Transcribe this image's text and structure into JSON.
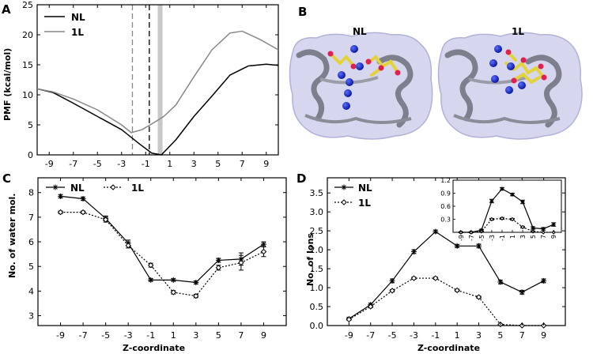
{
  "panels": {
    "A": {
      "letter": "A"
    },
    "B": {
      "letter": "B",
      "labels": [
        "NL",
        "1L"
      ]
    },
    "C": {
      "letter": "C"
    },
    "D": {
      "letter": "D"
    }
  },
  "chart_data": [
    {
      "type": "line",
      "panel": "A",
      "xlabel": "",
      "ylabel": "PMF (kcal/mol)",
      "xlim": [
        -10,
        10
      ],
      "ylim": [
        0,
        25
      ],
      "x_ticks": [
        "-9",
        "-7",
        "-5",
        "-3",
        "-1",
        "1",
        "3",
        "5",
        "7",
        "9"
      ],
      "y_ticks": [
        "0",
        "5",
        "10",
        "15",
        "20",
        "25"
      ],
      "legend_position": "top-left",
      "series": [
        {
          "name": "NL",
          "color": "#000000",
          "x": [
            -10,
            -8.7,
            -7,
            -5,
            -3,
            -1.5,
            -0.5,
            0.3,
            1.5,
            3,
            4.5,
            6,
            7.5,
            9,
            10
          ],
          "y": [
            11,
            10.4,
            8.6,
            6.4,
            4.2,
            1.8,
            0.3,
            0.0,
            2.5,
            6.4,
            9.8,
            13.3,
            14.8,
            15.1,
            14.9
          ]
        },
        {
          "name": "1L",
          "color": "#888888",
          "x": [
            -10,
            -8.7,
            -7,
            -5,
            -3,
            -2.2,
            -1.3,
            -0.3,
            0.5,
            1.5,
            3,
            4.5,
            6,
            7,
            8.5,
            10
          ],
          "y": [
            11,
            10.5,
            9.3,
            7.5,
            5.0,
            3.7,
            4.2,
            5.4,
            6.4,
            8.3,
            13.0,
            17.5,
            20.3,
            20.6,
            19.2,
            17.5
          ]
        }
      ],
      "dashed_lines": [
        {
          "x": -2.1,
          "color": "#888888"
        },
        {
          "x": -0.7,
          "color": "#000000"
        }
      ],
      "shaded_band": [
        0,
        0.4
      ]
    },
    {
      "type": "line",
      "panel": "C",
      "xlabel": "Z-coordinate",
      "ylabel": "No. of water mol.",
      "xlim": [
        -11,
        11
      ],
      "ylim": [
        2.6,
        8.6
      ],
      "x_ticks": [
        "-9",
        "-7",
        "-5",
        "-3",
        "-1",
        "1",
        "3",
        "5",
        "7",
        "9"
      ],
      "y_ticks": [
        "3",
        "4",
        "5",
        "6",
        "7",
        "8"
      ],
      "legend_position": "top",
      "categories": [
        "-9",
        "-7",
        "-5",
        "-3",
        "-1",
        "1",
        "3",
        "5",
        "7",
        "9"
      ],
      "series": [
        {
          "name": "NL",
          "style": "solid",
          "marker": "star",
          "values": [
            7.85,
            7.75,
            6.95,
            5.95,
            4.45,
            4.45,
            4.35,
            5.25,
            5.3,
            5.9
          ],
          "errors": [
            0.07,
            0.07,
            0.1,
            0.12,
            0.05,
            0.05,
            0.06,
            0.08,
            0.25,
            0.1
          ]
        },
        {
          "name": "1L",
          "style": "dotted",
          "marker": "diamond",
          "values": [
            7.2,
            7.2,
            6.9,
            5.85,
            5.05,
            3.95,
            3.8,
            4.95,
            5.15,
            5.6
          ],
          "errors": [
            0.05,
            0.05,
            0.1,
            0.1,
            0.08,
            0.07,
            0.07,
            0.1,
            0.3,
            0.2
          ]
        }
      ]
    },
    {
      "type": "line",
      "panel": "D",
      "xlabel": "Z-coordinate",
      "ylabel": "No. of Ions",
      "xlim": [
        -11,
        11
      ],
      "ylim": [
        0,
        3.9
      ],
      "x_ticks": [
        "-9",
        "-7",
        "-5",
        "-3",
        "-1",
        "1",
        "3",
        "5",
        "7",
        "9"
      ],
      "y_ticks": [
        "0.0",
        "0.5",
        "1.0",
        "1.5",
        "2.0",
        "2.5",
        "3.0",
        "3.5"
      ],
      "legend_position": "top-left",
      "categories": [
        "-9",
        "-7",
        "-5",
        "-3",
        "-1",
        "1",
        "3",
        "5",
        "7",
        "9"
      ],
      "series": [
        {
          "name": "NL",
          "style": "solid",
          "marker": "star",
          "values": [
            0.18,
            0.55,
            1.18,
            1.95,
            2.48,
            2.1,
            2.1,
            1.15,
            0.88,
            1.18
          ],
          "errors": [
            0.03,
            0.04,
            0.05,
            0.05,
            0.04,
            0.04,
            0.05,
            0.05,
            0.05,
            0.05
          ]
        },
        {
          "name": "1L",
          "style": "dotted",
          "marker": "diamond",
          "values": [
            0.16,
            0.5,
            0.92,
            1.25,
            1.25,
            0.93,
            0.75,
            0.03,
            0.0,
            0.0
          ],
          "errors": [
            0.02,
            0.03,
            0.03,
            0.03,
            0.03,
            0.03,
            0.03,
            0.01,
            0.0,
            0.0
          ]
        }
      ],
      "inset": {
        "ylim": [
          0,
          1.2
        ],
        "y_ticks": [
          "0.3",
          "0.6",
          "0.9",
          "1.2"
        ],
        "x_ticks": [
          "-9",
          "-7",
          "-5",
          "-3",
          "-1",
          "1",
          "3",
          "5",
          "7",
          "9"
        ],
        "series": [
          {
            "name": "NL",
            "style": "solid",
            "marker": "star",
            "values": [
              0.0,
              0.0,
              0.05,
              0.72,
              1.0,
              0.87,
              0.7,
              0.1,
              0.08,
              0.18
            ],
            "errors": [
              0.01,
              0.01,
              0.02,
              0.04,
              0.03,
              0.03,
              0.04,
              0.03,
              0.03,
              0.04
            ]
          },
          {
            "name": "1L",
            "style": "dotted",
            "marker": "diamond",
            "values": [
              0.0,
              0.0,
              0.02,
              0.3,
              0.32,
              0.3,
              0.12,
              0.02,
              0.0,
              0.0
            ],
            "errors": [
              0.01,
              0.01,
              0.01,
              0.02,
              0.02,
              0.02,
              0.02,
              0.01,
              0.0,
              0.0
            ]
          }
        ]
      }
    }
  ]
}
